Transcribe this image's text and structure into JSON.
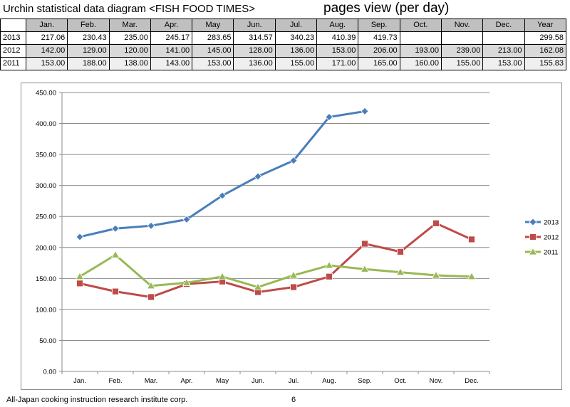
{
  "header": {
    "title": "Urchin statistical data diagram <FISH FOOD TIMES>",
    "subtitle": "pages view (per day)"
  },
  "table": {
    "columns": [
      "Jan.",
      "Feb.",
      "Mar.",
      "Apr.",
      "May",
      "Jun.",
      "Jul.",
      "Aug.",
      "Sep.",
      "Oct.",
      "Nov.",
      "Dec.",
      "Year"
    ],
    "rows": [
      {
        "year": "2013",
        "cells": [
          "217.06",
          "230.43",
          "235.00",
          "245.17",
          "283.65",
          "314.57",
          "340.23",
          "410.39",
          "419.73",
          "",
          "",
          "",
          "299.58"
        ]
      },
      {
        "year": "2012",
        "cells": [
          "142.00",
          "129.00",
          "120.00",
          "141.00",
          "145.00",
          "128.00",
          "136.00",
          "153.00",
          "206.00",
          "193.00",
          "239.00",
          "213.00",
          "162.08"
        ]
      },
      {
        "year": "2011",
        "cells": [
          "153.00",
          "188.00",
          "138.00",
          "143.00",
          "153.00",
          "136.00",
          "155.00",
          "171.00",
          "165.00",
          "160.00",
          "155.00",
          "153.00",
          "155.83"
        ]
      }
    ]
  },
  "chart_data": {
    "type": "line",
    "categories": [
      "Jan.",
      "Feb.",
      "Mar.",
      "Apr.",
      "May",
      "Jun.",
      "Jul.",
      "Aug.",
      "Sep.",
      "Oct.",
      "Nov.",
      "Dec."
    ],
    "ylim": [
      0,
      450
    ],
    "yticks": [
      "0.00",
      "50.00",
      "100.00",
      "150.00",
      "200.00",
      "250.00",
      "300.00",
      "350.00",
      "400.00",
      "450.00"
    ],
    "grid": true,
    "legend_position": "right",
    "series": [
      {
        "name": "2013",
        "color": "#4a7ebb",
        "marker": "diamond",
        "values": [
          217.06,
          230.43,
          235.0,
          245.17,
          283.65,
          314.57,
          340.23,
          410.39,
          419.73,
          null,
          null,
          null
        ]
      },
      {
        "name": "2012",
        "color": "#be4b48",
        "marker": "square",
        "values": [
          142,
          129,
          120,
          141,
          145,
          128,
          136,
          153,
          206,
          193,
          239,
          213
        ]
      },
      {
        "name": "2011",
        "color": "#98b954",
        "marker": "triangle",
        "values": [
          153,
          188,
          138,
          143,
          153,
          136,
          155,
          171,
          165,
          160,
          155,
          153
        ]
      }
    ]
  },
  "footer": {
    "text": "All-Japan cooking instruction research institute corp.",
    "page": "6"
  }
}
